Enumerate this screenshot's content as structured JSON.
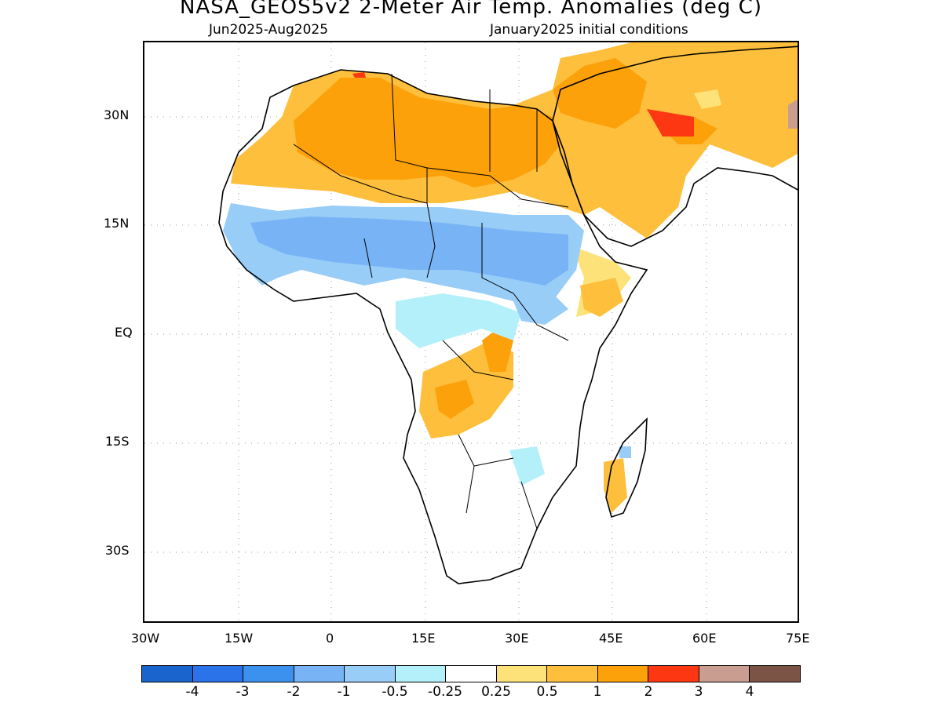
{
  "title": "NASA_GEOS5v2 2-Meter Air Temp. Anomalies (deg C)",
  "subtitle_left": "Jun2025-Aug2025",
  "subtitle_right": "January2025 initial conditions",
  "lat_labels": [
    "30N",
    "15N",
    "EQ",
    "15S",
    "30S"
  ],
  "lon_labels": [
    "30W",
    "15W",
    "0",
    "15E",
    "30E",
    "45E",
    "60E",
    "75E"
  ],
  "legend": {
    "colors": [
      "#1965cd",
      "#2a73e8",
      "#3c91ef",
      "#78b4f5",
      "#98cdf8",
      "#b4f0fa",
      "#ffffff",
      "#fde27a",
      "#fdbf3c",
      "#fda10a",
      "#fd3711",
      "#c99e90",
      "#7c5446"
    ],
    "labels": [
      "-4",
      "-3",
      "-2",
      "-1",
      "-0.5",
      "-0.25",
      "0.25",
      "0.5",
      "1",
      "2",
      "3",
      "4"
    ]
  },
  "colors": {
    "land_outline": "#000000",
    "grid": "#9a9a9a"
  }
}
